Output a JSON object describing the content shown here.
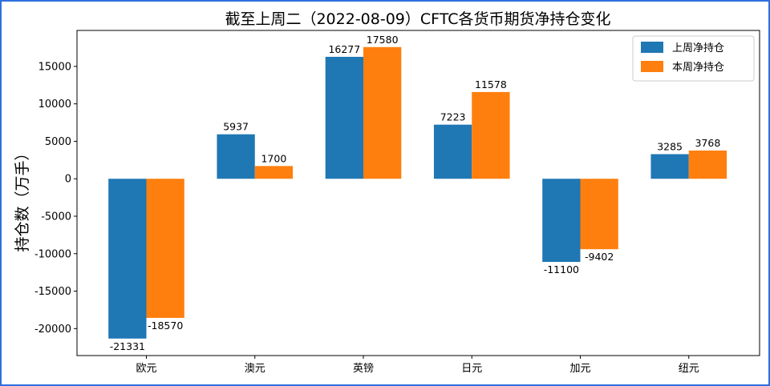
{
  "chart_data": {
    "type": "bar",
    "title": "截至上周二（2022-08-09）CFTC各货币期货净持仓变化",
    "xlabel": "",
    "ylabel": "持仓数（万手）",
    "categories": [
      "欧元",
      "澳元",
      "英镑",
      "日元",
      "加元",
      "纽元"
    ],
    "series": [
      {
        "name": "上周净持仓",
        "color": "#1f77b4",
        "values": [
          -21331,
          5937,
          16277,
          7223,
          -11100,
          3285
        ]
      },
      {
        "name": "本周净持仓",
        "color": "#ff7f0e",
        "values": [
          -18570,
          1700,
          17580,
          11578,
          -9402,
          3768
        ]
      }
    ],
    "ylim": [
      -23600,
      19800
    ],
    "yticks": [
      -20000,
      -15000,
      -10000,
      -5000,
      0,
      5000,
      10000,
      15000
    ],
    "grid": false,
    "legend_position": "top-right"
  }
}
